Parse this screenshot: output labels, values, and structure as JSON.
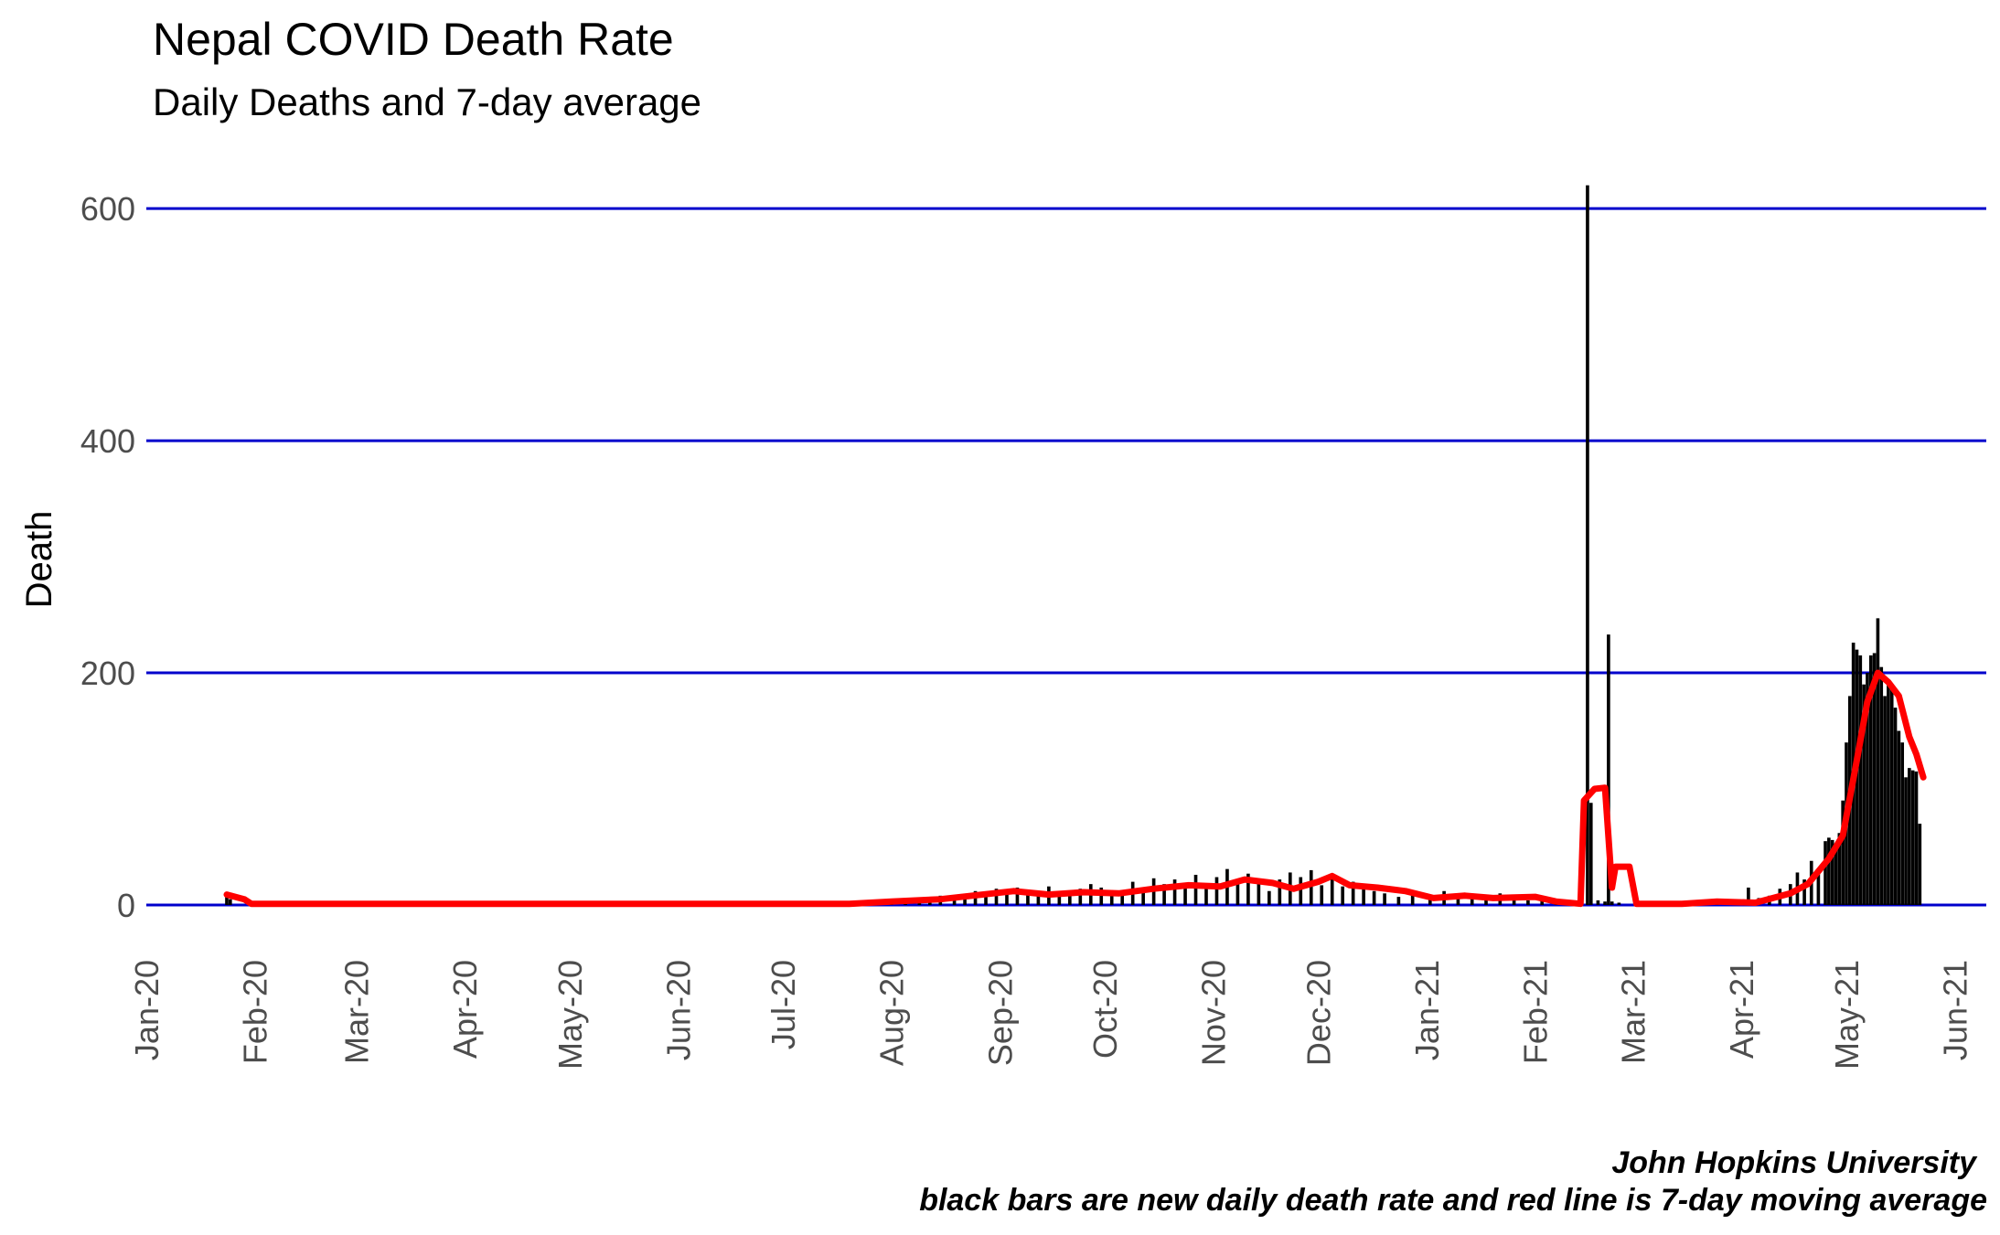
{
  "chart_data": {
    "type": "bar",
    "title": "Nepal COVID Death Rate",
    "subtitle": "Daily Deaths and 7-day average",
    "ylabel": "Death",
    "xlabel": "",
    "ylim": [
      0,
      630
    ],
    "yticks": [
      0,
      200,
      400,
      600
    ],
    "x_range": [
      "2020-01-01",
      "2021-06-10"
    ],
    "x_ticks": [
      {
        "date": "2020-01-01",
        "label": "Jan-20"
      },
      {
        "date": "2020-02-01",
        "label": "Feb-20"
      },
      {
        "date": "2020-03-01",
        "label": "Mar-20"
      },
      {
        "date": "2020-04-01",
        "label": "Apr-20"
      },
      {
        "date": "2020-05-01",
        "label": "May-20"
      },
      {
        "date": "2020-06-01",
        "label": "Jun-20"
      },
      {
        "date": "2020-07-01",
        "label": "Jul-20"
      },
      {
        "date": "2020-08-01",
        "label": "Aug-20"
      },
      {
        "date": "2020-09-01",
        "label": "Sep-20"
      },
      {
        "date": "2020-10-01",
        "label": "Oct-20"
      },
      {
        "date": "2020-11-01",
        "label": "Nov-20"
      },
      {
        "date": "2020-12-01",
        "label": "Dec-20"
      },
      {
        "date": "2021-01-01",
        "label": "Jan-21"
      },
      {
        "date": "2021-02-01",
        "label": "Feb-21"
      },
      {
        "date": "2021-03-01",
        "label": "Mar-21"
      },
      {
        "date": "2021-04-01",
        "label": "Apr-21"
      },
      {
        "date": "2021-05-01",
        "label": "May-21"
      },
      {
        "date": "2021-06-01",
        "label": "Jun-21"
      }
    ],
    "grid": "horizontal major lines only",
    "colors": {
      "bars": "#000000",
      "line": "#ff0000",
      "grid": "#0000cc"
    },
    "series": [
      {
        "type": "bar",
        "points": [
          [
            "2020-01-24",
            9
          ],
          [
            "2020-01-25",
            5
          ],
          [
            "2020-07-05",
            2
          ],
          [
            "2020-07-15",
            1
          ],
          [
            "2020-07-25",
            2
          ],
          [
            "2020-08-01",
            4
          ],
          [
            "2020-08-05",
            3
          ],
          [
            "2020-08-09",
            6
          ],
          [
            "2020-08-12",
            4
          ],
          [
            "2020-08-15",
            8
          ],
          [
            "2020-08-19",
            6
          ],
          [
            "2020-08-22",
            9
          ],
          [
            "2020-08-25",
            12
          ],
          [
            "2020-08-28",
            10
          ],
          [
            "2020-08-31",
            14
          ],
          [
            "2020-09-03",
            13
          ],
          [
            "2020-09-06",
            15
          ],
          [
            "2020-09-09",
            10
          ],
          [
            "2020-09-12",
            12
          ],
          [
            "2020-09-15",
            16
          ],
          [
            "2020-09-18",
            11
          ],
          [
            "2020-09-21",
            9
          ],
          [
            "2020-09-24",
            14
          ],
          [
            "2020-09-27",
            18
          ],
          [
            "2020-09-30",
            15
          ],
          [
            "2020-10-03",
            10
          ],
          [
            "2020-10-06",
            12
          ],
          [
            "2020-10-09",
            20
          ],
          [
            "2020-10-12",
            14
          ],
          [
            "2020-10-15",
            23
          ],
          [
            "2020-10-18",
            18
          ],
          [
            "2020-10-21",
            22
          ],
          [
            "2020-10-24",
            15
          ],
          [
            "2020-10-27",
            26
          ],
          [
            "2020-10-30",
            18
          ],
          [
            "2020-11-02",
            24
          ],
          [
            "2020-11-05",
            31
          ],
          [
            "2020-11-08",
            20
          ],
          [
            "2020-11-11",
            27
          ],
          [
            "2020-11-14",
            19
          ],
          [
            "2020-11-17",
            12
          ],
          [
            "2020-11-20",
            22
          ],
          [
            "2020-11-23",
            28
          ],
          [
            "2020-11-26",
            24
          ],
          [
            "2020-11-29",
            30
          ],
          [
            "2020-12-02",
            17
          ],
          [
            "2020-12-05",
            25
          ],
          [
            "2020-12-08",
            16
          ],
          [
            "2020-12-11",
            20
          ],
          [
            "2020-12-14",
            14
          ],
          [
            "2020-12-17",
            12
          ],
          [
            "2020-12-20",
            10
          ],
          [
            "2020-12-24",
            7
          ],
          [
            "2020-12-28",
            9
          ],
          [
            "2021-01-02",
            8
          ],
          [
            "2021-01-06",
            12
          ],
          [
            "2021-01-10",
            6
          ],
          [
            "2021-01-14",
            9
          ],
          [
            "2021-01-18",
            7
          ],
          [
            "2021-01-22",
            10
          ],
          [
            "2021-01-26",
            5
          ],
          [
            "2021-01-30",
            4
          ],
          [
            "2021-02-03",
            8
          ],
          [
            "2021-02-07",
            5
          ],
          [
            "2021-02-11",
            2
          ],
          [
            "2021-02-16",
            620
          ],
          [
            "2021-02-17",
            88
          ],
          [
            "2021-02-19",
            4
          ],
          [
            "2021-02-21",
            3
          ],
          [
            "2021-02-22",
            233
          ],
          [
            "2021-02-23",
            3
          ],
          [
            "2021-02-25",
            2
          ],
          [
            "2021-03-10",
            2
          ],
          [
            "2021-03-15",
            3
          ],
          [
            "2021-03-20",
            4
          ],
          [
            "2021-03-25",
            3
          ],
          [
            "2021-03-30",
            4
          ],
          [
            "2021-04-03",
            15
          ],
          [
            "2021-04-06",
            6
          ],
          [
            "2021-04-09",
            8
          ],
          [
            "2021-04-12",
            14
          ],
          [
            "2021-04-15",
            18
          ],
          [
            "2021-04-17",
            28
          ],
          [
            "2021-04-19",
            22
          ],
          [
            "2021-04-21",
            38
          ],
          [
            "2021-04-23",
            30
          ],
          [
            "2021-04-25",
            55
          ],
          [
            "2021-04-26",
            58
          ],
          [
            "2021-04-27",
            56
          ],
          [
            "2021-04-28",
            48
          ],
          [
            "2021-04-29",
            62
          ],
          [
            "2021-04-30",
            90
          ],
          [
            "2021-05-01",
            140
          ],
          [
            "2021-05-02",
            180
          ],
          [
            "2021-05-03",
            226
          ],
          [
            "2021-05-04",
            220
          ],
          [
            "2021-05-05",
            215
          ],
          [
            "2021-05-06",
            190
          ],
          [
            "2021-05-07",
            200
          ],
          [
            "2021-05-08",
            215
          ],
          [
            "2021-05-09",
            217
          ],
          [
            "2021-05-10",
            247
          ],
          [
            "2021-05-11",
            205
          ],
          [
            "2021-05-12",
            180
          ],
          [
            "2021-05-13",
            190
          ],
          [
            "2021-05-14",
            188
          ],
          [
            "2021-05-15",
            170
          ],
          [
            "2021-05-16",
            150
          ],
          [
            "2021-05-17",
            140
          ],
          [
            "2021-05-18",
            110
          ],
          [
            "2021-05-19",
            118
          ],
          [
            "2021-05-20",
            116
          ],
          [
            "2021-05-21",
            115
          ],
          [
            "2021-05-22",
            70
          ]
        ]
      },
      {
        "type": "line",
        "points": [
          [
            "2020-01-24",
            9
          ],
          [
            "2020-01-29",
            5
          ],
          [
            "2020-01-31",
            1
          ],
          [
            "2020-06-01",
            1
          ],
          [
            "2020-07-01",
            1
          ],
          [
            "2020-07-20",
            1
          ],
          [
            "2020-08-01",
            3
          ],
          [
            "2020-08-15",
            5
          ],
          [
            "2020-08-30",
            10
          ],
          [
            "2020-09-05",
            12
          ],
          [
            "2020-09-15",
            9
          ],
          [
            "2020-09-25",
            11
          ],
          [
            "2020-10-05",
            10
          ],
          [
            "2020-10-15",
            14
          ],
          [
            "2020-10-25",
            17
          ],
          [
            "2020-11-03",
            16
          ],
          [
            "2020-11-10",
            22
          ],
          [
            "2020-11-18",
            19
          ],
          [
            "2020-11-24",
            14
          ],
          [
            "2020-12-01",
            20
          ],
          [
            "2020-12-05",
            25
          ],
          [
            "2020-12-10",
            17
          ],
          [
            "2020-12-18",
            15
          ],
          [
            "2020-12-26",
            12
          ],
          [
            "2021-01-03",
            6
          ],
          [
            "2021-01-12",
            8
          ],
          [
            "2021-01-20",
            6
          ],
          [
            "2021-02-01",
            7
          ],
          [
            "2021-02-07",
            3
          ],
          [
            "2021-02-14",
            1
          ],
          [
            "2021-02-15",
            90
          ],
          [
            "2021-02-18",
            100
          ],
          [
            "2021-02-21",
            101
          ],
          [
            "2021-02-23",
            15
          ],
          [
            "2021-02-24",
            33
          ],
          [
            "2021-02-28",
            33
          ],
          [
            "2021-03-02",
            1
          ],
          [
            "2021-03-15",
            1
          ],
          [
            "2021-03-25",
            3
          ],
          [
            "2021-04-05",
            2
          ],
          [
            "2021-04-15",
            10
          ],
          [
            "2021-04-20",
            18
          ],
          [
            "2021-04-26",
            40
          ],
          [
            "2021-04-30",
            60
          ],
          [
            "2021-05-04",
            125
          ],
          [
            "2021-05-07",
            175
          ],
          [
            "2021-05-10",
            200
          ],
          [
            "2021-05-13",
            192
          ],
          [
            "2021-05-16",
            180
          ],
          [
            "2021-05-19",
            145
          ],
          [
            "2021-05-21",
            130
          ],
          [
            "2021-05-23",
            110
          ]
        ]
      }
    ]
  },
  "captions": {
    "source": "John Hopkins University",
    "note": "black bars are new daily death rate and red line is 7-day moving average"
  }
}
